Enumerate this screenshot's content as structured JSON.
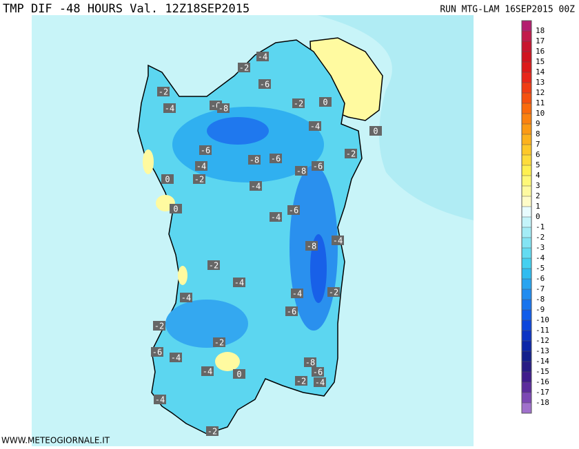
{
  "header": {
    "title": "TMP DIF -48 HOURS Val. 12Z18SEP2015",
    "run": "RUN MTG-LAM 16SEP2015 00Z"
  },
  "map": {
    "contour_labels": [
      "-4",
      "-2",
      "-6",
      "-2",
      "-4",
      "-6",
      "-8",
      "-2",
      "0",
      "-4",
      "0",
      "-6",
      "-2",
      "-8",
      "-6",
      "-4",
      "-8",
      "-6",
      "-2",
      "0",
      "-4",
      "0",
      "-6",
      "-4",
      "-4",
      "-8",
      "-2",
      "-4",
      "-4",
      "-2",
      "-4",
      "-6",
      "-2",
      "-2",
      "-6",
      "-4",
      "-8",
      "-4",
      "-6",
      "0",
      "-2",
      "-4",
      "-4",
      "-2"
    ]
  },
  "colorbar": {
    "levels": [
      18,
      17,
      16,
      15,
      14,
      13,
      12,
      11,
      10,
      9,
      8,
      7,
      6,
      5,
      4,
      3,
      2,
      1,
      0,
      -1,
      -2,
      -3,
      -4,
      -5,
      -6,
      -7,
      -8,
      -9,
      -10,
      -11,
      -12,
      -13,
      -14,
      -15,
      -16,
      -17,
      -18
    ],
    "colors": [
      "#b41f6f",
      "#c21a4a",
      "#c8152e",
      "#d0141f",
      "#dc1a1a",
      "#e8261a",
      "#f03c14",
      "#f5500f",
      "#fa6a0c",
      "#fb8210",
      "#fc9a14",
      "#fdb21c",
      "#fec828",
      "#fedc3a",
      "#fff050",
      "#fff878",
      "#fffaa0",
      "#fffcc8",
      "#e8fcff",
      "#c4f4fa",
      "#a4ecf6",
      "#84e4f4",
      "#64dcf2",
      "#44d0f0",
      "#30bcf0",
      "#28a4f0",
      "#208cf0",
      "#1874ee",
      "#105cea",
      "#0c46dc",
      "#0c34c4",
      "#0c26a8",
      "#14208c",
      "#281c84",
      "#401c8c",
      "#5c2c9c",
      "#7c48b4",
      "#a070cc"
    ]
  },
  "footer": {
    "watermark": "WWW.METEOGIORNALE.IT"
  }
}
